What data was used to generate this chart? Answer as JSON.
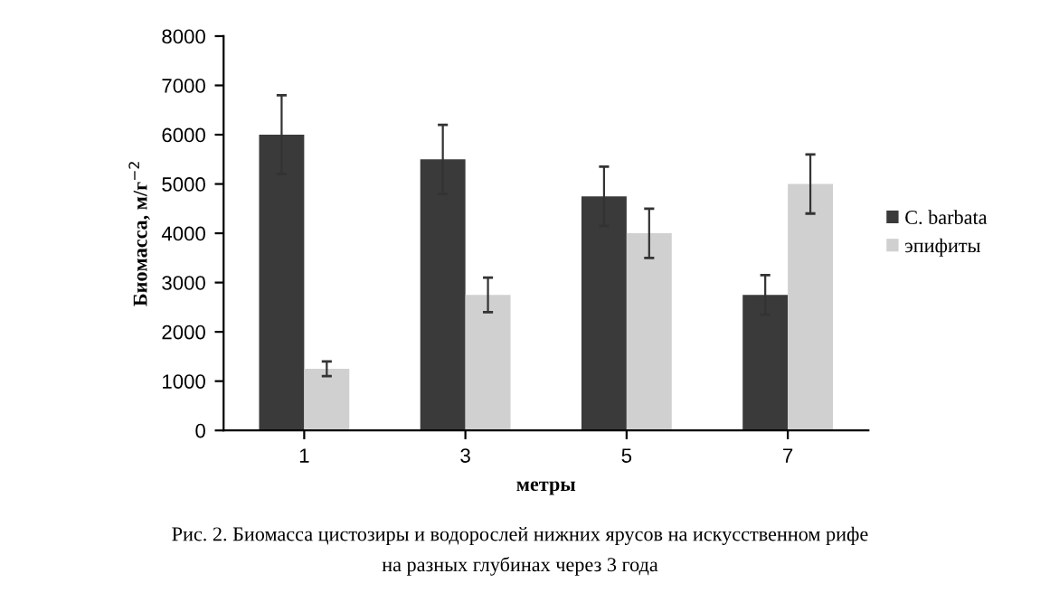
{
  "chart_data": {
    "type": "bar",
    "xlabel": "метры",
    "ylabel": "Биомасса, м/г$^{−2}$",
    "categories": [
      "1",
      "3",
      "5",
      "7"
    ],
    "series": [
      {
        "name": "C. barbata",
        "color": "#3a3a3a",
        "values": [
          6000,
          5500,
          4750,
          2750
        ],
        "errors": [
          800,
          700,
          600,
          400
        ]
      },
      {
        "name": "эпифиты",
        "color": "#d0d0d0",
        "values": [
          1250,
          2750,
          4000,
          5000
        ],
        "errors": [
          150,
          350,
          500,
          600
        ]
      }
    ],
    "ylim": [
      0,
      8000
    ],
    "yticks": [
      0,
      1000,
      2000,
      3000,
      4000,
      5000,
      6000,
      7000,
      8000
    ],
    "grid": false,
    "legend": "right",
    "annotations": [
      "Рис. 2. Биомасса цистозиры и водорослей нижних ярусов на искусственном рифе",
      "на разных глубинах через 3 года"
    ]
  }
}
